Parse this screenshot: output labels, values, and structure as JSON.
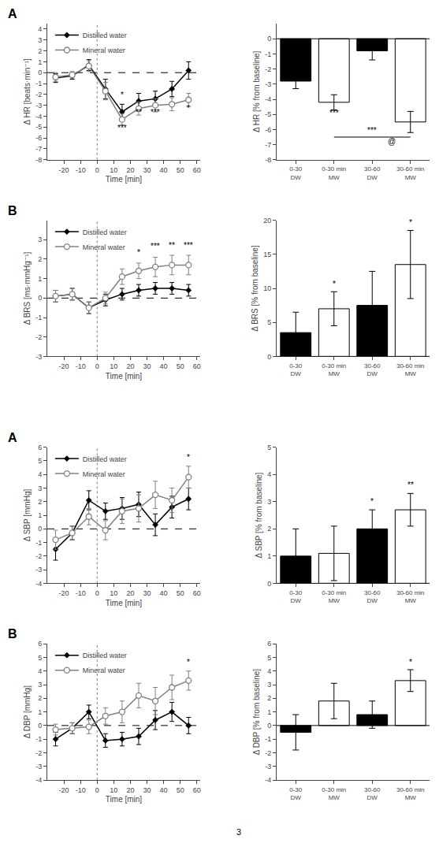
{
  "chart_data": [
    {
      "type": "line",
      "panel_label": "A",
      "x": [
        -25,
        -15,
        -5,
        5,
        15,
        25,
        35,
        45,
        55
      ],
      "xlabel": "Time [min]",
      "ylabel": "Δ HR [beats·min⁻¹]",
      "xlim": [
        -30,
        62
      ],
      "xticks": [
        -20,
        -10,
        0,
        10,
        20,
        30,
        40,
        50,
        60
      ],
      "ylim": [
        -8,
        4.5
      ],
      "yticks": [
        -8,
        -7,
        -6,
        -5,
        -4,
        -3,
        -2,
        -1,
        0,
        1,
        2,
        3,
        4
      ],
      "grid": false,
      "legend": "upper left",
      "series": [
        {
          "name": "Distilled water",
          "color": "black",
          "marker": "diamond",
          "values": [
            -0.5,
            -0.3,
            0.7,
            -1.5,
            -3.6,
            -2.6,
            -2.4,
            -1.5,
            0.2
          ],
          "errors": [
            0.4,
            0.3,
            0.5,
            0.9,
            0.7,
            0.7,
            0.7,
            0.7,
            0.8
          ]
        },
        {
          "name": "Mineral water",
          "color": "gray",
          "marker": "circle-open",
          "values": [
            -0.4,
            -0.2,
            0.6,
            -1.7,
            -4.3,
            -3.3,
            -3.0,
            -2.9,
            -2.5
          ],
          "errors": [
            0.4,
            0.3,
            0.5,
            0.8,
            0.5,
            0.6,
            0.6,
            0.6,
            0.6
          ]
        }
      ],
      "reference_lines": [
        {
          "axis": "y",
          "value": 0,
          "line_style": "dashed",
          "color": "black"
        },
        {
          "axis": "x",
          "value": 0,
          "line_style": "dotted",
          "color": "gray"
        }
      ],
      "annotations": [
        {
          "x": 15,
          "y": -2.6,
          "text": "*"
        },
        {
          "x": 15,
          "y": -5.6,
          "text": "***"
        },
        {
          "x": 25,
          "y": -4.2,
          "text": "**"
        },
        {
          "x": 35,
          "y": -4.2,
          "text": "***"
        },
        {
          "x": 55,
          "y": -3.8,
          "text": "*"
        }
      ]
    },
    {
      "type": "bar",
      "categories": [
        "0-30\nDW",
        "0-30 min\nMW",
        "30-60\nDW",
        "30-60 min\nMW"
      ],
      "values": [
        -2.8,
        -4.2,
        -0.8,
        -5.5
      ],
      "errors": [
        0.5,
        0.5,
        0.6,
        0.7
      ],
      "colors": [
        "black",
        "white",
        "black",
        "white"
      ],
      "ylabel": "Δ HR [% from baseline]",
      "ylim": [
        -8,
        1
      ],
      "yticks": [
        -8,
        -7,
        -6,
        -5,
        -4,
        -3,
        -2,
        -1,
        0
      ],
      "grid": false,
      "reference_lines": [
        {
          "axis": "y",
          "value": 0,
          "line_style": "solid",
          "color": "black"
        }
      ],
      "annotations": [
        {
          "x": 1,
          "y": -5.3,
          "text": "***"
        },
        {
          "x": 2.5,
          "y": -7.2,
          "text": "@"
        }
      ],
      "brackets": [
        {
          "from": 1,
          "to": 3,
          "y": -6.5,
          "text": "***"
        }
      ]
    },
    {
      "type": "line",
      "panel_label": "B",
      "x": [
        -25,
        -15,
        -5,
        5,
        15,
        25,
        35,
        45,
        55
      ],
      "xlabel": "Time [min]",
      "ylabel": "Δ BRS [ms·mmHg⁻¹]",
      "xlim": [
        -30,
        62
      ],
      "xticks": [
        -20,
        -10,
        0,
        10,
        20,
        30,
        40,
        50,
        60
      ],
      "ylim": [
        -3,
        4
      ],
      "yticks": [
        -3,
        -2,
        -1,
        0,
        1,
        2,
        3
      ],
      "grid": false,
      "legend": "upper left",
      "series": [
        {
          "name": "Distilled water",
          "color": "black",
          "marker": "diamond",
          "values": [
            0.1,
            0.2,
            -0.5,
            -0.1,
            0.2,
            0.4,
            0.5,
            0.5,
            0.4
          ],
          "errors": [
            0.3,
            0.3,
            0.3,
            0.3,
            0.3,
            0.3,
            0.3,
            0.3,
            0.3
          ]
        },
        {
          "name": "Mineral water",
          "color": "gray",
          "marker": "circle-open",
          "values": [
            0.1,
            0.2,
            -0.5,
            0.0,
            1.1,
            1.4,
            1.6,
            1.7,
            1.7
          ],
          "errors": [
            0.3,
            0.3,
            0.3,
            0.3,
            0.4,
            0.4,
            0.5,
            0.5,
            0.5
          ]
        }
      ],
      "reference_lines": [
        {
          "axis": "y",
          "value": 0,
          "line_style": "dashed",
          "color": "black"
        },
        {
          "axis": "x",
          "value": 0,
          "line_style": "dotted",
          "color": "gray"
        }
      ],
      "annotations": [
        {
          "x": 25,
          "y": 2.05,
          "text": "*"
        },
        {
          "x": 35,
          "y": 2.35,
          "text": "***"
        },
        {
          "x": 45,
          "y": 2.4,
          "text": "**"
        },
        {
          "x": 55,
          "y": 2.4,
          "text": "***"
        }
      ]
    },
    {
      "type": "bar",
      "categories": [
        "0-30\nDW",
        "0-30 min\nMW",
        "30-60\nDW",
        "30-60 min\nMW"
      ],
      "values": [
        3.5,
        7.0,
        7.5,
        13.5
      ],
      "errors": [
        3.0,
        2.5,
        5.0,
        5.0
      ],
      "colors": [
        "black",
        "white",
        "black",
        "white"
      ],
      "ylabel": "Δ BRS [% from baseline]",
      "ylim": [
        0,
        20
      ],
      "yticks": [
        0,
        5,
        10,
        15,
        20
      ],
      "grid": false,
      "reference_lines": [
        {
          "axis": "y",
          "value": 0,
          "line_style": "solid",
          "color": "black"
        }
      ],
      "annotations": [
        {
          "x": 1,
          "y": 9.8,
          "text": "*"
        },
        {
          "x": 3,
          "y": 18.8,
          "text": "*"
        }
      ]
    },
    {
      "type": "line",
      "panel_label": "A",
      "x": [
        -25,
        -15,
        -5,
        5,
        15,
        25,
        35,
        45,
        55
      ],
      "xlabel": "Time [min]",
      "ylabel": "Δ SBP [mmHg]",
      "xlim": [
        -30,
        62
      ],
      "xticks": [
        -20,
        -10,
        0,
        10,
        20,
        30,
        40,
        50,
        60
      ],
      "ylim": [
        -4,
        6
      ],
      "yticks": [
        -4,
        -3,
        -2,
        -1,
        0,
        1,
        2,
        3,
        4,
        5,
        6
      ],
      "grid": false,
      "legend": "upper left",
      "series": [
        {
          "name": "Distilled water",
          "color": "black",
          "marker": "diamond",
          "values": [
            -1.5,
            -0.3,
            2.1,
            1.3,
            1.5,
            1.8,
            0.3,
            1.6,
            2.2
          ],
          "errors": [
            0.8,
            0.5,
            0.7,
            0.6,
            0.8,
            0.9,
            0.8,
            0.8,
            0.8
          ]
        },
        {
          "name": "Mineral water",
          "color": "gray",
          "marker": "circle-open",
          "values": [
            -0.8,
            -0.3,
            0.9,
            -0.1,
            1.3,
            1.5,
            2.5,
            2.1,
            3.8
          ],
          "errors": [
            0.7,
            0.5,
            0.6,
            0.7,
            0.9,
            1.0,
            1.0,
            0.9,
            0.8
          ]
        }
      ],
      "reference_lines": [
        {
          "axis": "y",
          "value": 0,
          "line_style": "dashed",
          "color": "black"
        },
        {
          "axis": "x",
          "value": 0,
          "line_style": "dotted",
          "color": "gray"
        }
      ],
      "annotations": [
        {
          "x": 55,
          "y": 4.8,
          "text": "*"
        }
      ]
    },
    {
      "type": "bar",
      "categories": [
        "0-30\nDW",
        "0-30 min\nMW",
        "30-60\nDW",
        "30-60 min\nMW"
      ],
      "values": [
        1.0,
        1.1,
        2.0,
        2.7
      ],
      "errors": [
        1.0,
        1.0,
        0.7,
        0.6
      ],
      "colors": [
        "black",
        "white",
        "black",
        "white"
      ],
      "ylabel": "Δ SBP [% from baseline]",
      "ylim": [
        0,
        5
      ],
      "yticks": [
        0,
        1,
        2,
        3,
        4,
        5
      ],
      "grid": false,
      "reference_lines": [
        {
          "axis": "y",
          "value": 0,
          "line_style": "solid",
          "color": "black"
        }
      ],
      "annotations": [
        {
          "x": 2,
          "y": 2.8,
          "text": "*"
        },
        {
          "x": 3,
          "y": 3.4,
          "text": "**"
        }
      ]
    },
    {
      "type": "line",
      "panel_label": "B",
      "x": [
        -25,
        -15,
        -5,
        5,
        15,
        25,
        35,
        45,
        55
      ],
      "xlabel": "Time [min]",
      "ylabel": "Δ DBP [mmHg]",
      "xlim": [
        -30,
        62
      ],
      "xticks": [
        -20,
        -10,
        0,
        10,
        20,
        30,
        40,
        50,
        60
      ],
      "ylim": [
        -4,
        6
      ],
      "yticks": [
        -4,
        -3,
        -2,
        -1,
        0,
        1,
        2,
        3,
        4,
        5,
        6
      ],
      "grid": false,
      "legend": "upper left",
      "series": [
        {
          "name": "Distilled water",
          "color": "black",
          "marker": "diamond",
          "values": [
            -1.0,
            -0.2,
            1.0,
            -1.1,
            -1.0,
            -0.8,
            0.4,
            1.0,
            0.0
          ],
          "errors": [
            0.5,
            0.4,
            0.5,
            0.5,
            0.5,
            0.6,
            0.7,
            0.7,
            0.6
          ]
        },
        {
          "name": "Mineral water",
          "color": "gray",
          "marker": "circle-open",
          "values": [
            -0.3,
            -0.2,
            -0.1,
            0.7,
            1.0,
            2.2,
            1.8,
            2.8,
            3.3
          ],
          "errors": [
            0.4,
            0.4,
            0.5,
            0.6,
            0.8,
            0.9,
            1.0,
            0.9,
            0.7
          ]
        }
      ],
      "reference_lines": [
        {
          "axis": "y",
          "value": 0,
          "line_style": "dashed",
          "color": "black"
        },
        {
          "axis": "x",
          "value": 0,
          "line_style": "dotted",
          "color": "gray"
        }
      ],
      "annotations": [
        {
          "x": 55,
          "y": 4.2,
          "text": "*"
        }
      ]
    },
    {
      "type": "bar",
      "categories": [
        "0-30\nDW",
        "0-30 min\nMW",
        "30-60\nDW",
        "30-60 min\nMW"
      ],
      "values": [
        -0.5,
        1.8,
        0.8,
        3.3
      ],
      "errors": [
        1.3,
        1.3,
        1.0,
        0.8
      ],
      "colors": [
        "black",
        "white",
        "black",
        "white"
      ],
      "ylabel": "Δ DBP [% from baseline]",
      "ylim": [
        -4,
        6
      ],
      "yticks": [
        -4,
        -3,
        -2,
        -1,
        0,
        1,
        2,
        3,
        4,
        5,
        6
      ],
      "grid": false,
      "reference_lines": [
        {
          "axis": "y",
          "value": 0,
          "line_style": "solid",
          "color": "black"
        }
      ],
      "annotations": [
        {
          "x": 3,
          "y": 4.2,
          "text": "*"
        }
      ]
    }
  ],
  "caption": "3"
}
